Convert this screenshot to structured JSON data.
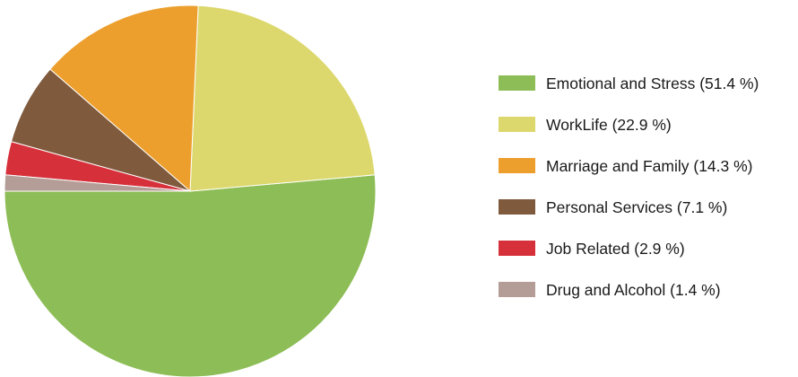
{
  "chart_data": {
    "type": "pie",
    "slices": [
      {
        "label": "Emotional and Stress (51.4 %)",
        "value": 51.4,
        "color": "#8dbd56"
      },
      {
        "label": "WorkLife (22.9 %)",
        "value": 22.9,
        "color": "#dcd86d"
      },
      {
        "label": "Marriage and Family (14.3 %)",
        "value": 14.3,
        "color": "#ec9f2d"
      },
      {
        "label": "Personal Services (7.1 %)",
        "value": 7.1,
        "color": "#7f5a3d"
      },
      {
        "label": "Job Related (2.9 %)",
        "value": 2.9,
        "color": "#d6313b"
      },
      {
        "label": "Drug and Alcohol (1.4 %)",
        "value": 1.4,
        "color": "#b59d97"
      }
    ],
    "legend_position": "right"
  }
}
